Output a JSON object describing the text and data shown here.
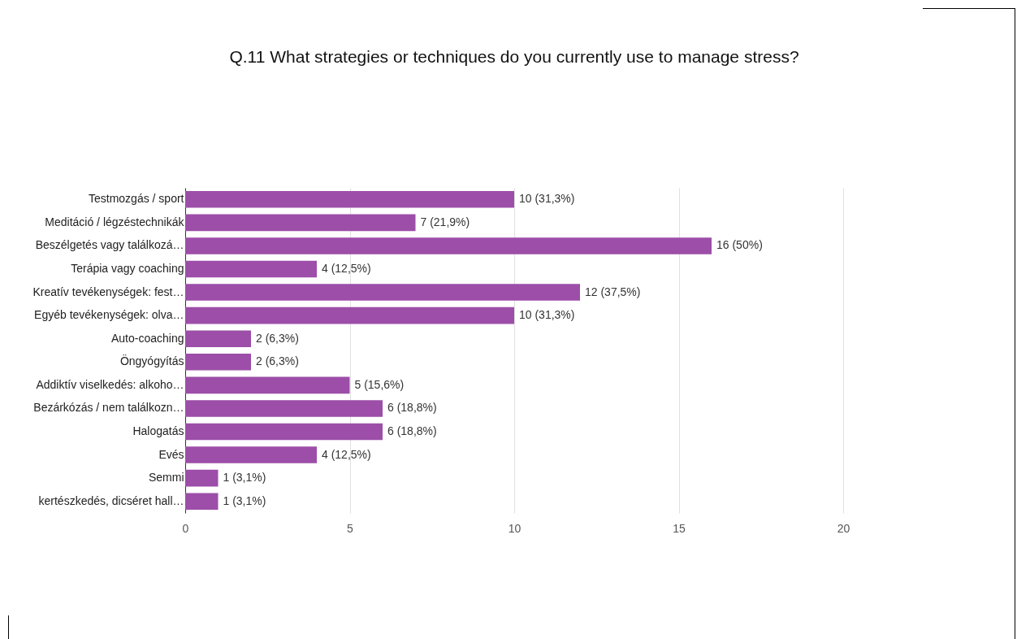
{
  "chart_data": {
    "type": "bar",
    "orientation": "horizontal",
    "title": "Q.11 What strategies or techniques do you currently use to manage stress?",
    "categories": [
      "Testmozgás / sport",
      "Meditáció / légzéstechnikák",
      "Beszélgetés vagy találkozá…",
      "Terápia vagy coaching",
      "Kreatív tevékenységek: fest…",
      "Egyéb tevékenységek: olva…",
      "Auto-coaching",
      "Öngyógyítás",
      "Addiktív viselkedés: alkoho…",
      "Bezárkózás / nem találkozn…",
      "Halogatás",
      "Evés",
      "Semmi",
      "kertészkedés, dicséret hall…"
    ],
    "series": [
      {
        "color": "#9c4ea8",
        "values": [
          10,
          7,
          16,
          4,
          12,
          10,
          2,
          2,
          5,
          6,
          6,
          4,
          1,
          1
        ],
        "value_labels": [
          "10 (31,3%)",
          "7 (21,9%)",
          "16 (50%)",
          "4 (12,5%)",
          "12 (37,5%)",
          "10 (31,3%)",
          "2 (6,3%)",
          "2 (6,3%)",
          "5 (15,6%)",
          "6 (18,8%)",
          "6 (18,8%)",
          "4 (12,5%)",
          "1 (3,1%)",
          "1 (3,1%)"
        ]
      }
    ],
    "xlim": [
      0,
      20
    ],
    "xticks": [
      0,
      5,
      10,
      15,
      20
    ],
    "grid": "x",
    "legend": false
  }
}
